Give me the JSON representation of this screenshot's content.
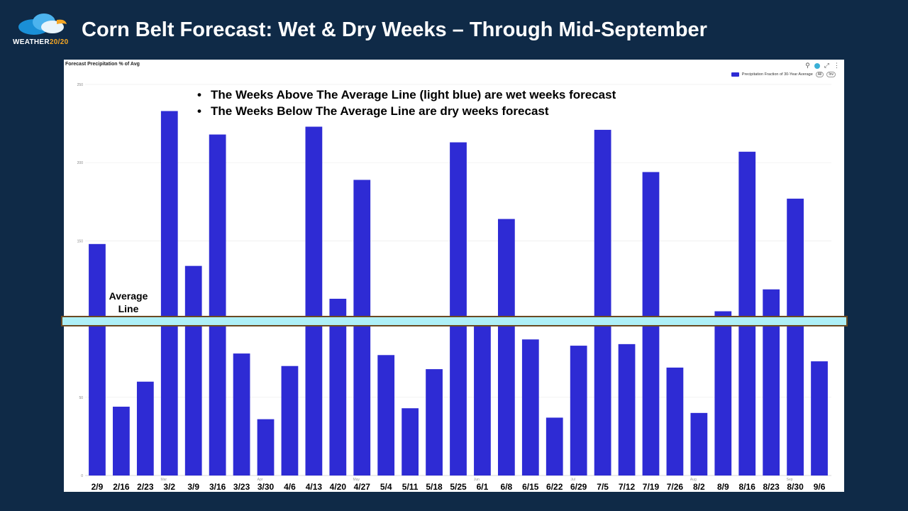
{
  "logo": {
    "text_main": "WEATHER",
    "text_accent": "20/20"
  },
  "slide_title": "Corn Belt Forecast:  Wet & Dry Weeks – Through Mid-September",
  "panel": {
    "title": "Forecast Precipitation % of Avg",
    "tools": {
      "badge": "⊙",
      "expand": "✕",
      "more": "⋮"
    },
    "legend": {
      "label": "Precipitation Fraction of 30-Year Average",
      "pill_all": "All",
      "pill_inv": "Inv"
    }
  },
  "bullets": [
    "The Weeks Above The Average Line (light blue) are wet weeks forecast",
    "The Weeks Below The Average Line are dry weeks forecast"
  ],
  "average_line": {
    "label_line1": "Average",
    "label_line2": "Line",
    "value": 100
  },
  "colors": {
    "bar": "#2e2bd4",
    "average_fill": "#aef0f7",
    "average_border": "#6b4a22",
    "background": "#0f2a47"
  },
  "chart_data": {
    "type": "bar",
    "title": "Forecast Precipitation % of Avg",
    "ylim": [
      0,
      250
    ],
    "yticks": [
      0,
      50,
      100,
      150,
      200,
      250
    ],
    "grid": true,
    "legend_position": "top-right",
    "categories": [
      "2/9",
      "2/16",
      "2/23",
      "3/2",
      "3/9",
      "3/16",
      "3/23",
      "3/30",
      "4/6",
      "4/13",
      "4/20",
      "4/27",
      "5/4",
      "5/11",
      "5/18",
      "5/25",
      "6/1",
      "6/8",
      "6/15",
      "6/22",
      "6/29",
      "7/5",
      "7/12",
      "7/19",
      "7/26",
      "8/2",
      "8/9",
      "8/16",
      "8/23",
      "8/30",
      "9/6"
    ],
    "month_labels": [
      {
        "label": "Mar",
        "at": "3/2"
      },
      {
        "label": "Apr",
        "at": "3/30"
      },
      {
        "label": "May",
        "at": "4/27"
      },
      {
        "label": "Jun",
        "at": "6/1"
      },
      {
        "label": "Jul",
        "at": "6/29"
      },
      {
        "label": "Aug",
        "at": "8/2"
      },
      {
        "label": "Sep",
        "at": "8/30"
      }
    ],
    "series": [
      {
        "name": "Precipitation Fraction of 30-Year Average",
        "values": [
          148,
          44,
          60,
          233,
          134,
          218,
          78,
          36,
          70,
          223,
          113,
          189,
          77,
          43,
          68,
          213,
          101,
          164,
          87,
          37,
          83,
          221,
          84,
          194,
          69,
          40,
          105,
          207,
          119,
          177,
          73
        ]
      }
    ]
  }
}
